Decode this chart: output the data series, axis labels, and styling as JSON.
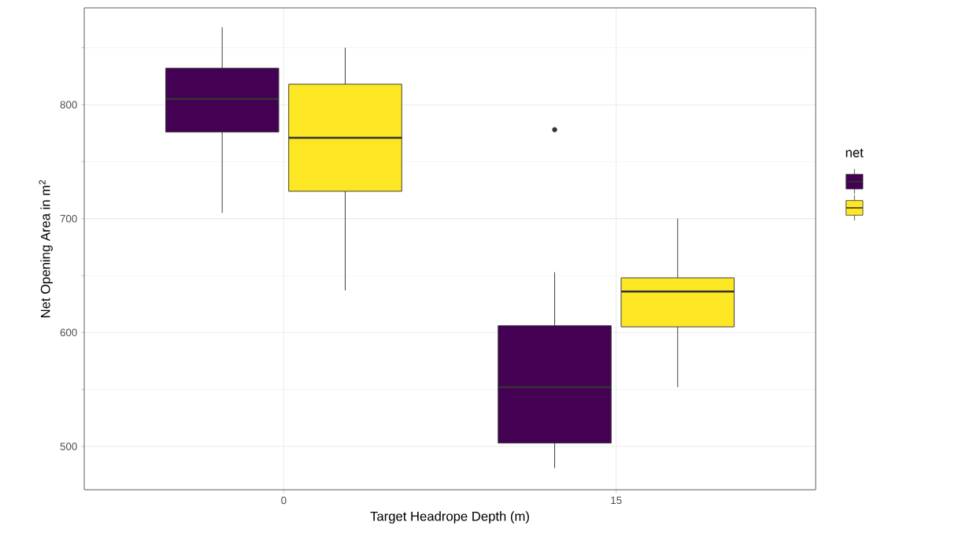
{
  "chart_data": {
    "type": "box",
    "xlabel": "Target Headrope Depth (m)",
    "ylabel": "Net Opening Area in m$^{2}$",
    "legend_title": "net",
    "grid": true,
    "categories": [
      "0",
      "15"
    ],
    "ylim": [
      462,
      885
    ],
    "yticks": [
      500,
      600,
      700,
      800
    ],
    "series": [
      {
        "color": "#440154",
        "boxes": [
          {
            "low": 705,
            "q1": 776,
            "median": 805,
            "q3": 832,
            "high": 868
          },
          {
            "low": 481,
            "q1": 503,
            "median": 552,
            "q3": 606,
            "high": 653,
            "outliers": [
              778
            ]
          }
        ]
      },
      {
        "color": "#fde725",
        "boxes": [
          {
            "low": 637,
            "q1": 724,
            "median": 771,
            "q3": 818,
            "high": 850
          },
          {
            "low": 552,
            "q1": 605,
            "median": 636,
            "q3": 648,
            "high": 700
          }
        ]
      }
    ]
  }
}
